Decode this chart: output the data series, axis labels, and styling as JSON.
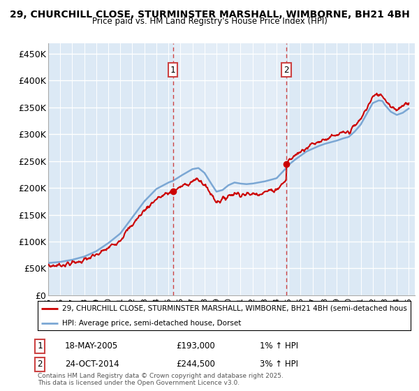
{
  "title1": "29, CHURCHILL CLOSE, STURMINSTER MARSHALL, WIMBORNE, BH21 4BH",
  "title2": "Price paid vs. HM Land Registry's House Price Index (HPI)",
  "ylabel_ticks": [
    "£0",
    "£50K",
    "£100K",
    "£150K",
    "£200K",
    "£250K",
    "£300K",
    "£350K",
    "£400K",
    "£450K"
  ],
  "ytick_values": [
    0,
    50000,
    100000,
    150000,
    200000,
    250000,
    300000,
    350000,
    400000,
    450000
  ],
  "ylim": [
    0,
    470000
  ],
  "sale1_year": 2005.37,
  "sale2_year": 2014.81,
  "sale1_price": 193000,
  "sale2_price": 244500,
  "legend_line1": "29, CHURCHILL CLOSE, STURMINSTER MARSHALL, WIMBORNE, BH21 4BH (semi-detached hous",
  "legend_line2": "HPI: Average price, semi-detached house, Dorset",
  "footer": "Contains HM Land Registry data © Crown copyright and database right 2025.\nThis data is licensed under the Open Government Licence v3.0.",
  "line_color_red": "#cc0000",
  "line_color_blue": "#7ba7d4",
  "fill_between_color": "#c8ddf0",
  "plot_bg": "#dce9f5",
  "vline_color": "#cc4444",
  "sale1_date": "18-MAY-2005",
  "sale2_date": "24-OCT-2014",
  "sale1_hpi": "1% ↑ HPI",
  "sale2_hpi": "3% ↑ HPI"
}
